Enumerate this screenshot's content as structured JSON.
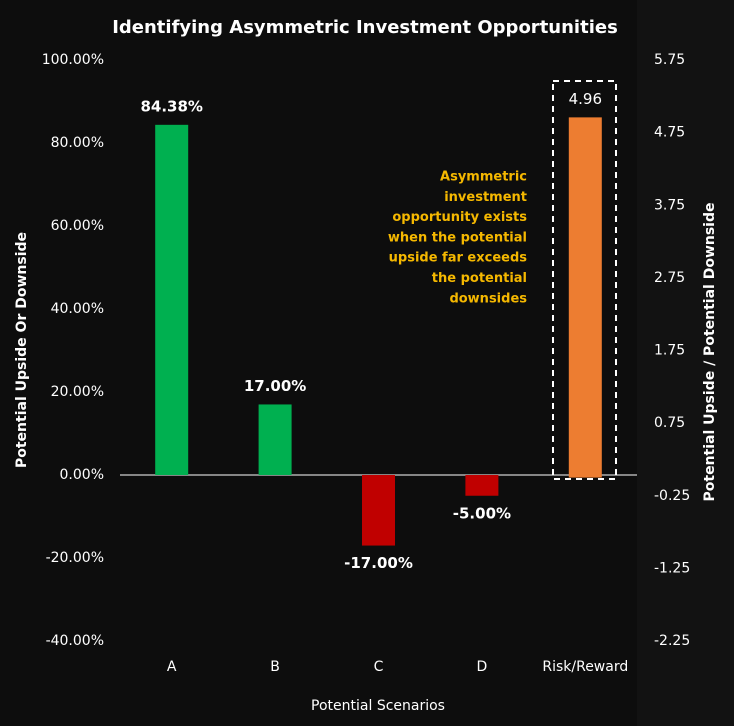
{
  "chart_data": {
    "type": "bar",
    "title": "Identifying Asymmetric Investment Opportunities",
    "x_label": "Potential Scenarios",
    "y_label": "Potential Upside Or Downside",
    "y2_label": "Potential Upside / Potential Downside",
    "categories": [
      "A",
      "B",
      "C",
      "D",
      "Risk/Reward"
    ],
    "series": [
      {
        "values": [
          84.38,
          17,
          -17,
          -5,
          null
        ],
        "value_labels": [
          "84.38%",
          "17.00%",
          "-17.00%",
          "-5.00%",
          null
        ],
        "colors": [
          "#00b050",
          "#00b050",
          "#c00000",
          "#c00000",
          null
        ]
      },
      {
        "axis": "y2",
        "values": [
          null,
          null,
          null,
          null,
          4.96
        ],
        "color": "#ed7d31"
      }
    ],
    "ylim": [
      -40,
      100
    ],
    "yticks": [
      {
        "value": -40,
        "label": "-40.00%"
      },
      {
        "value": -20,
        "label": "-20.00%"
      },
      {
        "value": 0,
        "label": "0.00%"
      },
      {
        "value": 20,
        "label": "20.00%"
      },
      {
        "value": 40,
        "label": "40.00%"
      },
      {
        "value": 60,
        "label": "60.00%"
      },
      {
        "value": 80,
        "label": "80.00%"
      },
      {
        "value": 100,
        "label": "100.00%"
      }
    ],
    "y2lim": [
      -2.25,
      5.75
    ],
    "y2ticks": [
      -2.25,
      -1.25,
      -0.25,
      0.75,
      1.75,
      2.75,
      3.75,
      4.75,
      5.75
    ],
    "annotation": [
      "Asymmetric",
      "investment",
      "opportunity exists",
      "when the potential",
      "upside far exceeds",
      "the potential",
      "downsides"
    ],
    "annotation_color": "#f5b800",
    "grid": false
  }
}
